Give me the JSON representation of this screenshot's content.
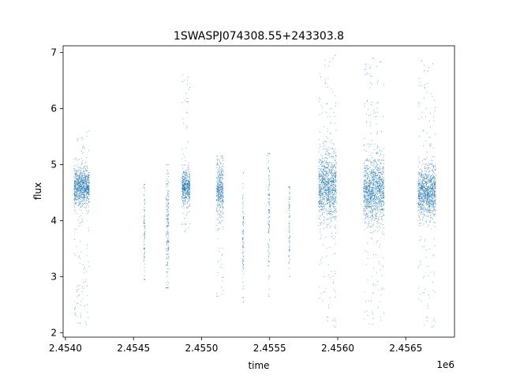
{
  "chart_data": {
    "type": "scatter",
    "title": "1SWASPJ074308.55+243303.8",
    "xlabel": "time",
    "ylabel": "flux",
    "x_offset_label": "1e6",
    "xlim": [
      2453983,
      2456858
    ],
    "ylim": [
      1.92,
      7.12
    ],
    "xticks": [
      2454000,
      2454500,
      2455000,
      2455500,
      2456000,
      2456500
    ],
    "xtick_labels": [
      "2.4540",
      "2.4545",
      "2.4550",
      "2.4555",
      "2.4560",
      "2.4565"
    ],
    "yticks": [
      2,
      3,
      4,
      5,
      6,
      7
    ],
    "ytick_labels": [
      "2",
      "3",
      "4",
      "5",
      "6",
      "7"
    ],
    "grid": false,
    "marker_color": "#1f77b4",
    "marker": "point",
    "clusters": [
      {
        "x_start": 2454063,
        "x_end": 2454175,
        "y_center": 4.6,
        "y_spread": 0.16,
        "y_min": 2.15,
        "y_max": 5.6
      },
      {
        "x_start": 2454575,
        "x_end": 2454585,
        "y_center": 3.7,
        "y_spread": 0.45,
        "y_min": 2.95,
        "y_max": 4.65
      },
      {
        "x_start": 2454740,
        "x_end": 2454760,
        "y_center": 3.9,
        "y_spread": 0.55,
        "y_min": 2.8,
        "y_max": 5.0
      },
      {
        "x_start": 2454855,
        "x_end": 2454915,
        "y_center": 4.6,
        "y_spread": 0.14,
        "y_min": 3.8,
        "y_max": 6.6
      },
      {
        "x_start": 2455110,
        "x_end": 2455160,
        "y_center": 4.55,
        "y_spread": 0.25,
        "y_min": 2.65,
        "y_max": 5.15
      },
      {
        "x_start": 2455300,
        "x_end": 2455310,
        "y_center": 3.7,
        "y_spread": 0.5,
        "y_min": 2.55,
        "y_max": 4.85
      },
      {
        "x_start": 2455488,
        "x_end": 2455500,
        "y_center": 4.1,
        "y_spread": 0.55,
        "y_min": 2.65,
        "y_max": 5.2
      },
      {
        "x_start": 2455640,
        "x_end": 2455650,
        "y_center": 4.0,
        "y_spread": 0.45,
        "y_min": 3.0,
        "y_max": 4.6
      },
      {
        "x_start": 2455860,
        "x_end": 2455990,
        "y_center": 4.6,
        "y_spread": 0.3,
        "y_min": 2.1,
        "y_max": 6.95
      },
      {
        "x_start": 2456190,
        "x_end": 2456340,
        "y_center": 4.55,
        "y_spread": 0.28,
        "y_min": 2.15,
        "y_max": 6.9
      },
      {
        "x_start": 2456590,
        "x_end": 2456720,
        "y_center": 4.5,
        "y_spread": 0.22,
        "y_min": 2.1,
        "y_max": 6.85
      }
    ]
  }
}
